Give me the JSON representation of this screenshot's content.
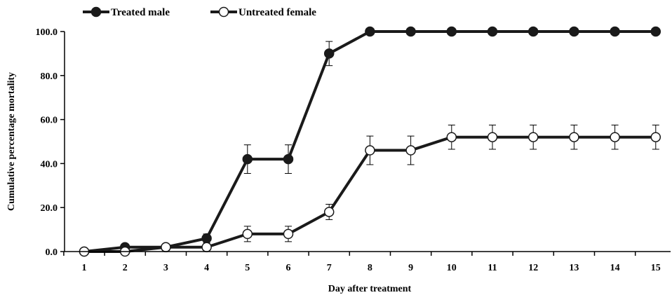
{
  "chart_data": {
    "type": "line",
    "title": "",
    "xlabel": "Day after treatment",
    "ylabel": "Cumulative percentage mortality",
    "categories": [
      "1",
      "2",
      "3",
      "4",
      "5",
      "6",
      "7",
      "8",
      "9",
      "10",
      "11",
      "12",
      "13",
      "14",
      "15"
    ],
    "x": [
      1,
      2,
      3,
      4,
      5,
      6,
      7,
      8,
      9,
      10,
      11,
      12,
      13,
      14,
      15
    ],
    "ylim": [
      0,
      100
    ],
    "yticks": [
      "0.0",
      "20.0",
      "40.0",
      "60.0",
      "80.0",
      "100.0"
    ],
    "grid": false,
    "legend_position": "top-left",
    "series": [
      {
        "name": "Treated male",
        "marker": "filled-circle",
        "color": "#1a1a1a",
        "values": [
          0,
          2,
          2,
          6,
          42,
          42,
          90,
          100,
          100,
          100,
          100,
          100,
          100,
          100,
          100
        ],
        "errors": [
          0,
          0,
          0,
          2,
          6.5,
          6.5,
          5.5,
          0,
          0,
          0,
          0,
          0,
          0,
          0,
          0
        ]
      },
      {
        "name": "Untreated female",
        "marker": "open-circle",
        "color": "#1a1a1a",
        "values": [
          0,
          0,
          2,
          2,
          8,
          8,
          18,
          46,
          46,
          52,
          52,
          52,
          52,
          52,
          52
        ],
        "errors": [
          0,
          0,
          0,
          0,
          3.5,
          3.5,
          3.5,
          6.5,
          6.5,
          5.5,
          5.5,
          5.5,
          5.5,
          5.5,
          5.5
        ]
      }
    ]
  }
}
